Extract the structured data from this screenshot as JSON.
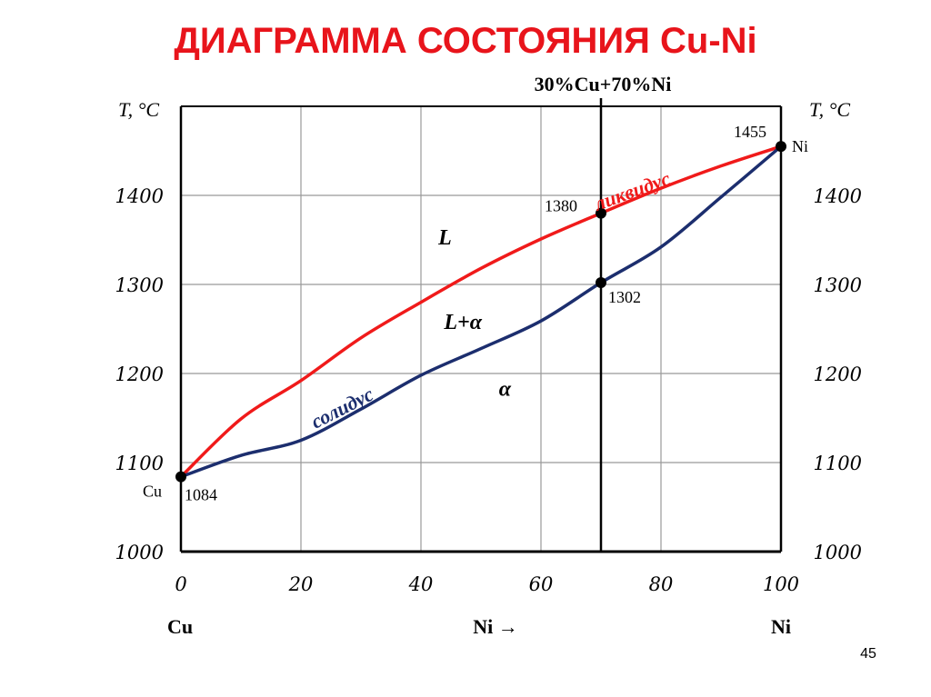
{
  "title": "ДИАГРАММА СОСТОЯНИЯ Cu-Ni",
  "page_number": "45",
  "chart_data": {
    "type": "line",
    "title": "ДИАГРАММА СОСТОЯНИЯ Cu-Ni",
    "xlabel": "Ni →",
    "ylabel": "T, °C",
    "ylabel_right": "T, °C",
    "xlim": [
      0,
      100
    ],
    "ylim": [
      1000,
      1500
    ],
    "grid": true,
    "x_ticks": [
      "0",
      "20",
      "40",
      "60",
      "80",
      "100"
    ],
    "x_tick_values": [
      0,
      20,
      40,
      60,
      80,
      100
    ],
    "y_ticks": [
      "1000",
      "1100",
      "1200",
      "1300",
      "1400"
    ],
    "y_tick_values": [
      1000,
      1100,
      1200,
      1300,
      1400
    ],
    "x_end_labels": {
      "left": "Cu",
      "center": "Ni →",
      "right": "Ni"
    },
    "series": [
      {
        "name": "ликвидус",
        "color": "#f01a1a",
        "x": [
          0,
          10,
          20,
          30,
          40,
          50,
          60,
          70,
          80,
          90,
          100
        ],
        "y": [
          1084,
          1149,
          1192,
          1240,
          1280,
          1318,
          1351,
          1380,
          1408,
          1433,
          1455
        ]
      },
      {
        "name": "солидус",
        "color": "#1c2e6e",
        "x": [
          0,
          10,
          20,
          30,
          40,
          50,
          60,
          70,
          80,
          90,
          100
        ],
        "y": [
          1084,
          1108,
          1125,
          1160,
          1198,
          1228,
          1259,
          1302,
          1342,
          1398,
          1455
        ]
      }
    ],
    "vertical_line": {
      "x": 70,
      "label": "30%Cu+70%Ni"
    },
    "points": [
      {
        "x": 0,
        "y": 1084,
        "label": "1084",
        "element": "Cu"
      },
      {
        "x": 100,
        "y": 1455,
        "label": "1455",
        "element": "Ni"
      },
      {
        "x": 70,
        "y": 1380,
        "label": "1380"
      },
      {
        "x": 70,
        "y": 1302,
        "label": "1302"
      }
    ],
    "regions": [
      {
        "label": "L",
        "x": 44,
        "y": 1345
      },
      {
        "label": "L+α",
        "x": 47,
        "y": 1250
      },
      {
        "label": "α",
        "x": 54,
        "y": 1175
      }
    ]
  }
}
